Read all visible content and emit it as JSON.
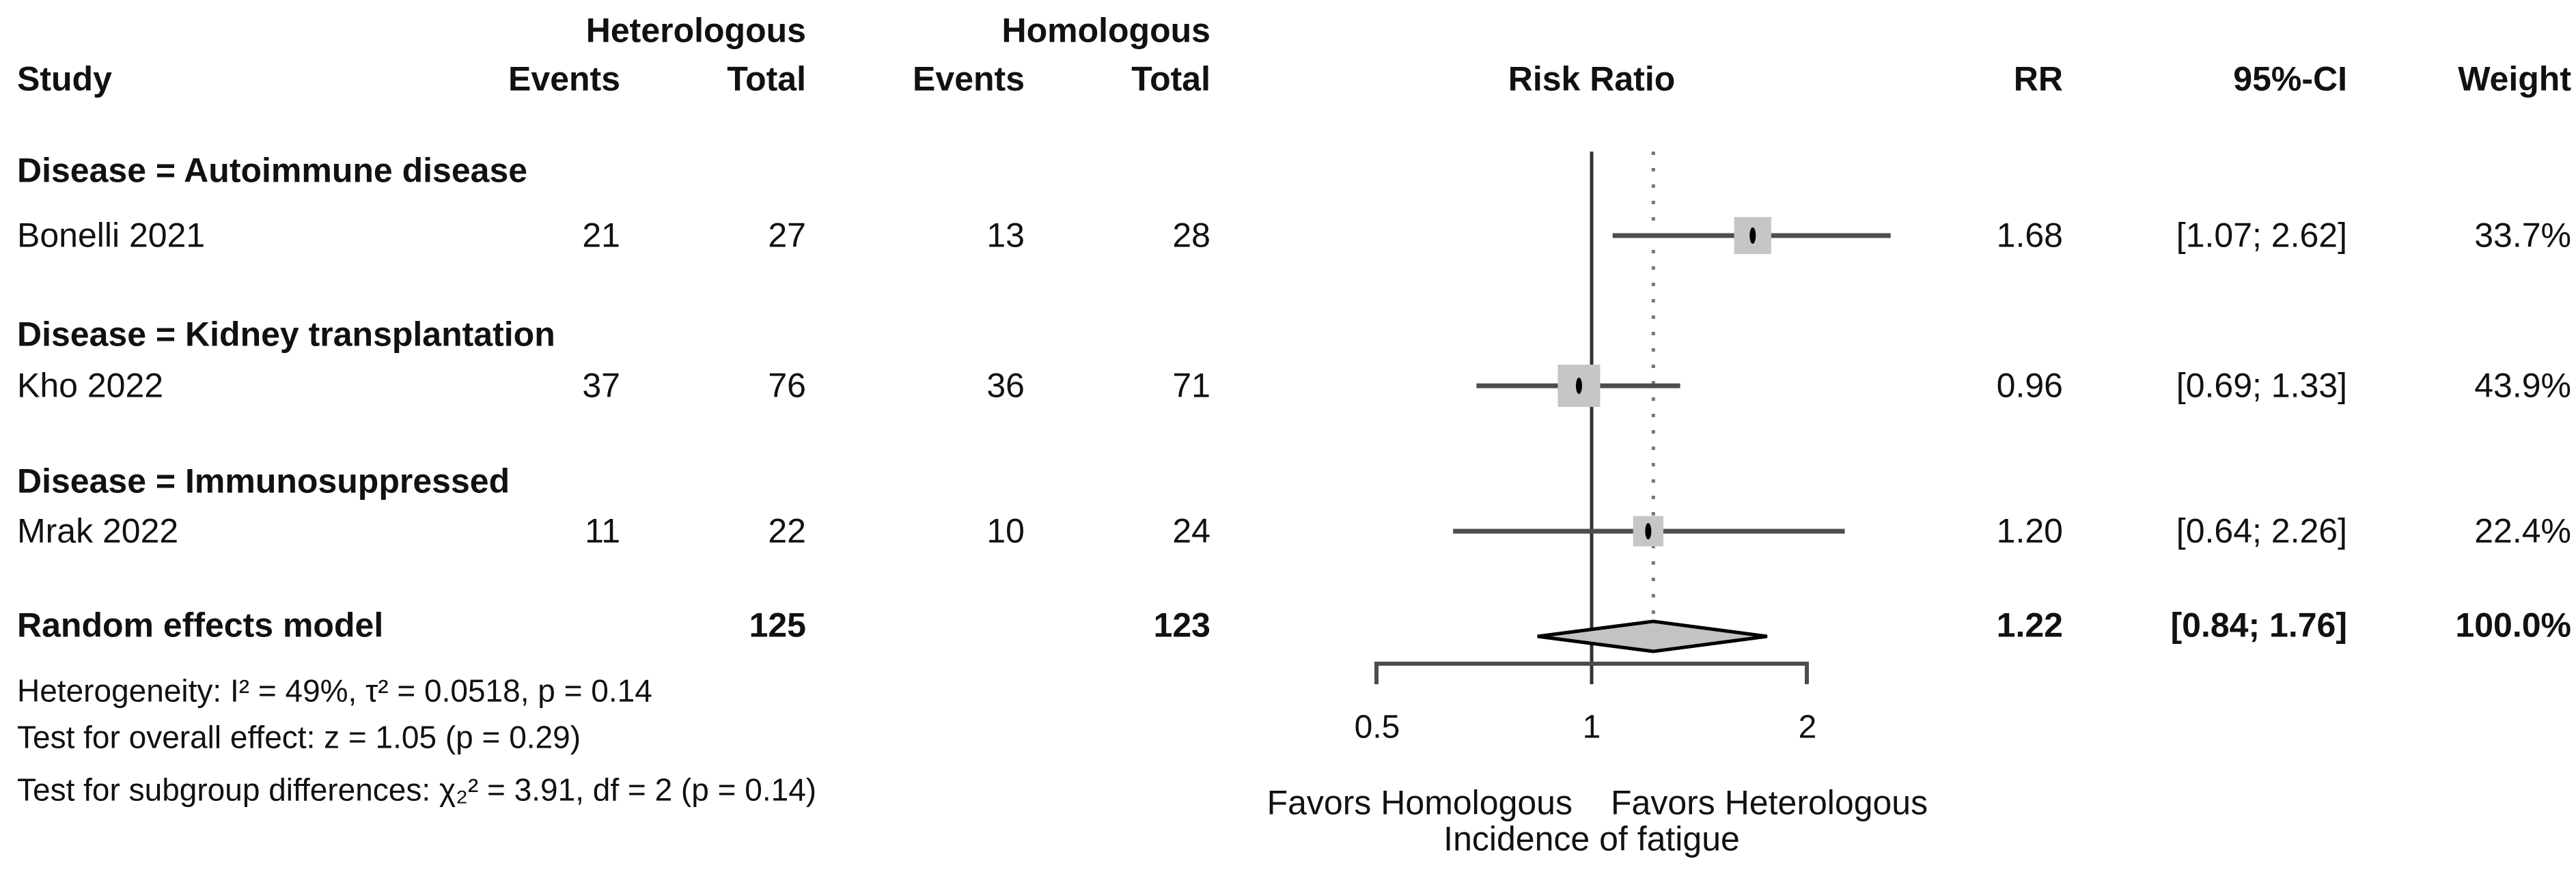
{
  "table": {
    "headers": {
      "group_left": "Heterologous",
      "group_right": "Homologous",
      "study": "Study",
      "events_left": "Events",
      "total_left": "Total",
      "events_right": "Events",
      "total_right": "Total",
      "risk_ratio": "Risk Ratio",
      "rr": "RR",
      "ci": "95%-CI",
      "weight": "Weight"
    },
    "subgroups": [
      {
        "label": "Disease = Autoimmune disease",
        "studies": [
          {
            "study": "Bonelli 2021",
            "het_events": "21",
            "het_total": "27",
            "hom_events": "13",
            "hom_total": "28",
            "rr": "1.68",
            "ci": "[1.07; 2.62]",
            "weight": "33.7%"
          }
        ]
      },
      {
        "label": "Disease = Kidney transplantation",
        "studies": [
          {
            "study": "Kho 2022",
            "het_events": "37",
            "het_total": "76",
            "hom_events": "36",
            "hom_total": "71",
            "rr": "0.96",
            "ci": "[0.69; 1.33]",
            "weight": "43.9%"
          }
        ]
      },
      {
        "label": "Disease = Immunosuppressed",
        "studies": [
          {
            "study": "Mrak 2022",
            "het_events": "11",
            "het_total": "22",
            "hom_events": "10",
            "hom_total": "24",
            "rr": "1.20",
            "ci": "[0.64; 2.26]",
            "weight": "22.4%"
          }
        ]
      }
    ],
    "summary_row": {
      "label": "Random effects model",
      "het_total": "125",
      "hom_total": "123",
      "rr": "1.22",
      "ci": "[0.84; 1.76]",
      "weight": "100.0%"
    }
  },
  "footnotes": {
    "heterogeneity": "Heterogeneity: I² = 49%, τ² = 0.0518, p = 0.14",
    "overall_effect": "Test for overall effect: z = 1.05 (p = 0.29)",
    "subgroup_differences": "Test for subgroup differences: χ₂² = 3.91, df = 2 (p = 0.14)"
  },
  "plot_labels": {
    "favors_left": "Favors Homologous",
    "favors_right": "Favors Heterologous",
    "xlabel": "Incidence of fatigue"
  },
  "chart_data": {
    "type": "forest",
    "x_scale": "log",
    "x_range": [
      0.5,
      2
    ],
    "x_ticks": [
      "0.5",
      "1",
      "2"
    ],
    "x_tick_values": [
      0.5,
      1,
      2
    ],
    "ref_line": 1,
    "pooled_dotted_line": 1.22,
    "effect_label": "Risk Ratio",
    "studies": [
      {
        "name": "Bonelli 2021",
        "rr": 1.68,
        "ci_low": 1.07,
        "ci_high": 2.62,
        "weight": 33.7
      },
      {
        "name": "Kho 2022",
        "rr": 0.96,
        "ci_low": 0.69,
        "ci_high": 1.33,
        "weight": 43.9
      },
      {
        "name": "Mrak 2022",
        "rr": 1.2,
        "ci_low": 0.64,
        "ci_high": 2.26,
        "weight": 22.4
      }
    ],
    "summary": {
      "name": "Random effects model",
      "rr": 1.22,
      "ci_low": 0.84,
      "ci_high": 1.76,
      "weight": 100.0
    },
    "colors": {
      "square_fill": "#c6c6c6",
      "ci_line": "#4d4d4d",
      "point_marker": "#000000",
      "diamond_fill": "#c3c3c3",
      "diamond_stroke": "#000000",
      "ref_line": "#333333",
      "dotted_line": "#777777",
      "axis": "#4d4d4d",
      "text": "#111111"
    }
  }
}
